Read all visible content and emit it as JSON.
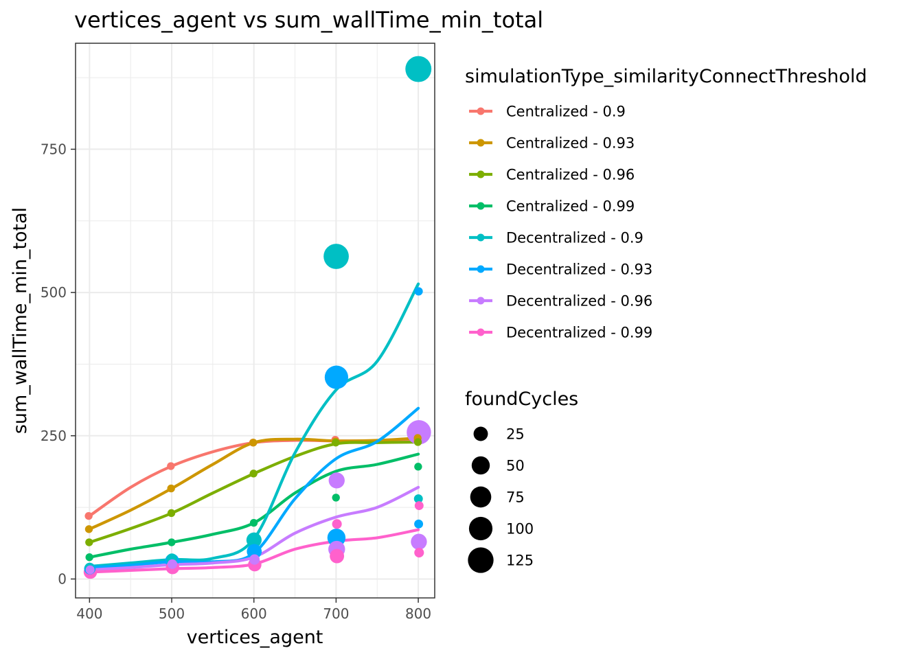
{
  "chart_data": {
    "type": "scatter",
    "title": "vertices_agent  vs  sum_wallTime_min_total",
    "xlabel": "vertices_agent",
    "ylabel": "sum_wallTime_min_total",
    "xlim": [
      383,
      820
    ],
    "ylim": [
      -33,
      935
    ],
    "xticks": [
      400,
      500,
      600,
      700,
      800
    ],
    "yticks": [
      0,
      250,
      500,
      750
    ],
    "grid": true,
    "legend_placement": "right",
    "color_legend": {
      "title": "simulationType_similarityConnectThreshold"
    },
    "size_legend": {
      "title": "foundCycles",
      "breaks": [
        25,
        50,
        75,
        100,
        125
      ]
    },
    "series": [
      {
        "name": "Centralized - 0.9",
        "color": "#F8766D",
        "points": [
          {
            "x": 400,
            "y": 110,
            "size": 2
          },
          {
            "x": 500,
            "y": 197,
            "size": 2
          },
          {
            "x": 600,
            "y": 238,
            "size": 2
          },
          {
            "x": 700,
            "y": 243,
            "size": 2
          },
          {
            "x": 800,
            "y": 242,
            "size": 2
          }
        ],
        "smooth": [
          [
            400,
            110
          ],
          [
            450,
            160
          ],
          [
            500,
            197
          ],
          [
            550,
            222
          ],
          [
            600,
            238
          ],
          [
            650,
            242
          ],
          [
            700,
            241
          ],
          [
            750,
            241
          ],
          [
            800,
            242
          ]
        ]
      },
      {
        "name": "Centralized - 0.93",
        "color": "#CD9600",
        "points": [
          {
            "x": 400,
            "y": 87,
            "size": 2
          },
          {
            "x": 500,
            "y": 158,
            "size": 2
          },
          {
            "x": 600,
            "y": 238,
            "size": 2
          },
          {
            "x": 700,
            "y": 240,
            "size": 2
          },
          {
            "x": 800,
            "y": 246,
            "size": 2
          }
        ],
        "smooth": [
          [
            400,
            87
          ],
          [
            450,
            120
          ],
          [
            500,
            158
          ],
          [
            550,
            200
          ],
          [
            600,
            238
          ],
          [
            650,
            244
          ],
          [
            700,
            241
          ],
          [
            750,
            242
          ],
          [
            800,
            246
          ]
        ]
      },
      {
        "name": "Centralized - 0.96",
        "color": "#7CAE00",
        "points": [
          {
            "x": 400,
            "y": 64,
            "size": 2
          },
          {
            "x": 500,
            "y": 115,
            "size": 2
          },
          {
            "x": 600,
            "y": 184,
            "size": 2
          },
          {
            "x": 700,
            "y": 238,
            "size": 2
          },
          {
            "x": 800,
            "y": 239,
            "size": 2
          }
        ],
        "smooth": [
          [
            400,
            64
          ],
          [
            450,
            88
          ],
          [
            500,
            115
          ],
          [
            550,
            150
          ],
          [
            600,
            184
          ],
          [
            650,
            214
          ],
          [
            700,
            236
          ],
          [
            750,
            238
          ],
          [
            800,
            239
          ]
        ]
      },
      {
        "name": "Centralized - 0.99",
        "color": "#00BE67",
        "points": [
          {
            "x": 400,
            "y": 38,
            "size": 2
          },
          {
            "x": 500,
            "y": 64,
            "size": 2
          },
          {
            "x": 600,
            "y": 98,
            "size": 2
          },
          {
            "x": 700,
            "y": 142,
            "size": 2
          },
          {
            "x": 800,
            "y": 196,
            "size": 2
          }
        ],
        "smooth": [
          [
            400,
            38
          ],
          [
            450,
            52
          ],
          [
            500,
            64
          ],
          [
            550,
            78
          ],
          [
            600,
            98
          ],
          [
            650,
            150
          ],
          [
            700,
            188
          ],
          [
            750,
            200
          ],
          [
            800,
            218
          ]
        ]
      },
      {
        "name": "Decentralized - 0.9",
        "color": "#00BFC4",
        "points": [
          {
            "x": 400,
            "y": 20,
            "size": 6
          },
          {
            "x": 500,
            "y": 35,
            "size": 10
          },
          {
            "x": 600,
            "y": 68,
            "size": 30
          },
          {
            "x": 700,
            "y": 563,
            "size": 120
          },
          {
            "x": 800,
            "y": 890,
            "size": 130
          },
          {
            "x": 800,
            "y": 140,
            "size": 4
          }
        ],
        "smooth": [
          [
            400,
            22
          ],
          [
            450,
            28
          ],
          [
            500,
            34
          ],
          [
            550,
            36
          ],
          [
            600,
            70
          ],
          [
            650,
            220
          ],
          [
            700,
            330
          ],
          [
            750,
            380
          ],
          [
            800,
            515
          ]
        ]
      },
      {
        "name": "Decentralized - 0.93",
        "color": "#00A9FF",
        "points": [
          {
            "x": 400,
            "y": 18,
            "size": 12
          },
          {
            "x": 500,
            "y": 32,
            "size": 22
          },
          {
            "x": 600,
            "y": 48,
            "size": 28
          },
          {
            "x": 700,
            "y": 352,
            "size": 100
          },
          {
            "x": 700,
            "y": 72,
            "size": 50
          },
          {
            "x": 800,
            "y": 502,
            "size": 3
          },
          {
            "x": 800,
            "y": 96,
            "size": 4
          }
        ],
        "smooth": [
          [
            400,
            20
          ],
          [
            450,
            24
          ],
          [
            500,
            30
          ],
          [
            550,
            30
          ],
          [
            600,
            45
          ],
          [
            650,
            140
          ],
          [
            700,
            210
          ],
          [
            750,
            240
          ],
          [
            800,
            298
          ]
        ]
      },
      {
        "name": "Decentralized - 0.96",
        "color": "#C77CFF",
        "points": [
          {
            "x": 400,
            "y": 16,
            "size": 4
          },
          {
            "x": 500,
            "y": 26,
            "size": 6
          },
          {
            "x": 600,
            "y": 34,
            "size": 8
          },
          {
            "x": 700,
            "y": 172,
            "size": 35
          },
          {
            "x": 700,
            "y": 52,
            "size": 40
          },
          {
            "x": 800,
            "y": 256,
            "size": 110
          },
          {
            "x": 800,
            "y": 65,
            "size": 35
          }
        ],
        "smooth": [
          [
            400,
            16
          ],
          [
            450,
            20
          ],
          [
            500,
            25
          ],
          [
            550,
            28
          ],
          [
            600,
            38
          ],
          [
            650,
            80
          ],
          [
            700,
            108
          ],
          [
            750,
            125
          ],
          [
            800,
            160
          ]
        ]
      },
      {
        "name": "Decentralized - 0.99",
        "color": "#FF61CC",
        "points": [
          {
            "x": 400,
            "y": 12,
            "size": 20
          },
          {
            "x": 500,
            "y": 20,
            "size": 20
          },
          {
            "x": 600,
            "y": 25,
            "size": 20
          },
          {
            "x": 700,
            "y": 96,
            "size": 6
          },
          {
            "x": 700,
            "y": 40,
            "size": 25
          },
          {
            "x": 800,
            "y": 128,
            "size": 4
          },
          {
            "x": 800,
            "y": 46,
            "size": 6
          }
        ],
        "smooth": [
          [
            400,
            12
          ],
          [
            450,
            15
          ],
          [
            500,
            18
          ],
          [
            550,
            20
          ],
          [
            600,
            26
          ],
          [
            650,
            52
          ],
          [
            700,
            66
          ],
          [
            750,
            72
          ],
          [
            800,
            86
          ]
        ]
      }
    ]
  }
}
